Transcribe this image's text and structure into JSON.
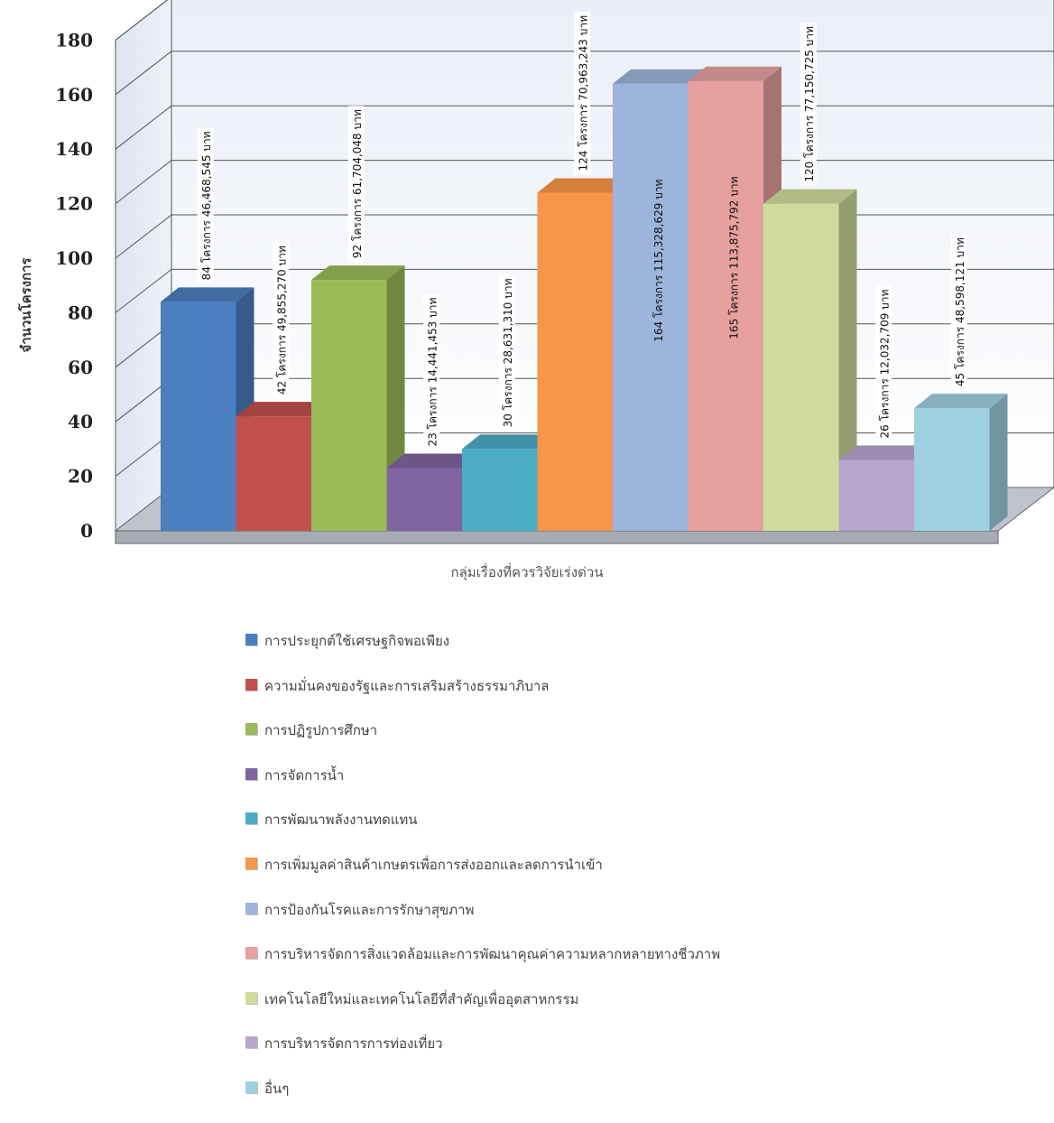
{
  "chart_data": {
    "type": "bar",
    "title": "",
    "xlabel": "กลุ่มเรื่องที่ควรวิจัยเร่งด่วน",
    "ylabel": "จำนวนโครงการ",
    "ylim": [
      0,
      180
    ],
    "yticks": [
      "0",
      "20",
      "40",
      "60",
      "80",
      "100",
      "120",
      "140",
      "160",
      "180"
    ],
    "grid": true,
    "three_d": true,
    "legend_position": "bottom",
    "bars": [
      {
        "name": "การประยุกต์ใช้เศรษฐกิจพอเพียง",
        "value": 84,
        "label": "84 โครงการ  46,468,545 บาท",
        "color": "#4b7fbf"
      },
      {
        "name": "ความมั่นคงของรัฐและการเสริมสร้างธรรมาภิบาล",
        "value": 42,
        "label": "42 โครงการ  49,855,270  บาท",
        "color": "#c1504c"
      },
      {
        "name": "การปฏิรูปการศึกษา",
        "value": 92,
        "label": "92 โครงการ  61,704,048 บาท",
        "color": "#9bbb59"
      },
      {
        "name": "การจัดการน้ำ",
        "value": 23,
        "label": "23 โครงการ  14,441,453 บาท",
        "color": "#8064a2"
      },
      {
        "name": "การพัฒนาพลังงานทดแทน",
        "value": 30,
        "label": "30 โครงการ  28,631,310 บาท",
        "color": "#4bacc6"
      },
      {
        "name": "การเพิ่มมูลค่าสินค้าเกษตรเพื่อการส่งออกและลดการนำเข้า",
        "value": 124,
        "label": "124 โครงการ  70,963,243 บาท",
        "color": "#f79646"
      },
      {
        "name": "การป้องกันโรคและการรักษาสุขภาพ",
        "value": 164,
        "label": "164 โครงการ  115,328,629 บาท",
        "color": "#9db4dc"
      },
      {
        "name": "การบริหารจัดการสิ่งแวดล้อมและการพัฒนาคุณค่าความหลากหลายทางชีวภาพ",
        "value": 165,
        "label": "165 โครงการ  113,875,792 บาท",
        "color": "#e6a09e"
      },
      {
        "name": "เทคโนโลยีใหม่และเทคโนโลยีที่สำคัญเพื่ออุตสาหกรรม",
        "value": 120,
        "label": "120 โครงการ  77,150,725 บาท",
        "color": "#cfdc9c"
      },
      {
        "name": "การบริหารจัดการการท่องเที่ยว",
        "value": 26,
        "label": "26 โครงการ  12,032,709 บาท",
        "color": "#b8a6cf"
      },
      {
        "name": "อื่นๆ",
        "value": 45,
        "label": "45 โครงการ  48,598,121 บาท",
        "color": "#9fd0e0"
      }
    ]
  }
}
